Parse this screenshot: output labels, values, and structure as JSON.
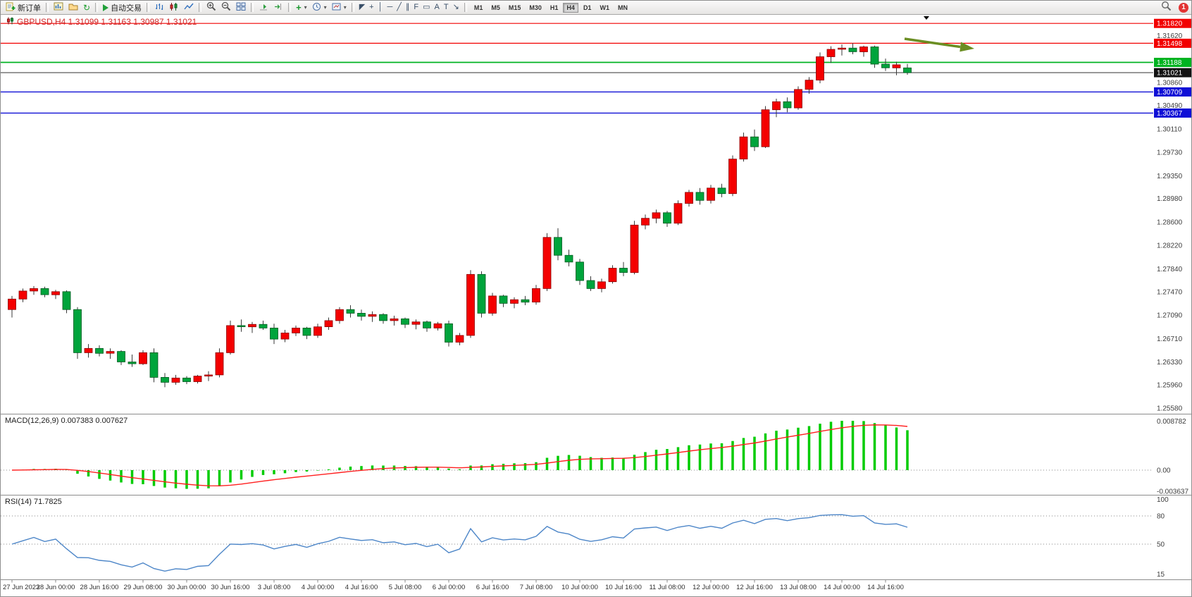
{
  "toolbar": {
    "new_order_label": "新订单",
    "auto_trading_label": "自动交易",
    "timeframes": [
      "M1",
      "M5",
      "M15",
      "M30",
      "H1",
      "H4",
      "D1",
      "W1",
      "MN"
    ],
    "active_timeframe": "H4",
    "draw_tools": [
      {
        "name": "cursor",
        "glyph": "◤"
      },
      {
        "name": "crosshair",
        "glyph": "+"
      },
      {
        "name": "vertical-line",
        "glyph": "│"
      },
      {
        "name": "horizontal-line",
        "glyph": "─"
      },
      {
        "name": "trendline",
        "glyph": "╱"
      },
      {
        "name": "equidistant-channel",
        "glyph": "∥"
      },
      {
        "name": "fibonacci",
        "glyph": "F"
      },
      {
        "name": "shapes",
        "glyph": "▭"
      },
      {
        "name": "text",
        "glyph": "A"
      },
      {
        "name": "text-label",
        "glyph": "T"
      },
      {
        "name": "arrows",
        "glyph": "↘"
      }
    ],
    "notification_badge": "1"
  },
  "chart": {
    "title": "GBPUSD,H4 1.31099 1.31163 1.30987 1.31021",
    "symbol": "GBPUSD",
    "period": "H4"
  },
  "indicators": {
    "macd": {
      "label": "MACD(12,26,9) 0.007383 0.007627",
      "axis": [
        "0.008782",
        "0.00",
        "-0.003637"
      ]
    },
    "rsi": {
      "label": "RSI(14) 71.7825",
      "axis": [
        "100",
        "80",
        "50",
        "15"
      ],
      "levels": [
        80,
        50
      ]
    }
  },
  "chart_data": {
    "type": "candlestick",
    "symbol": "GBPUSD",
    "timeframe": "H4",
    "current": {
      "open": 1.31099,
      "high": 1.31163,
      "low": 1.30987,
      "close": 1.31021
    },
    "y_range": [
      1.2549,
      1.3196
    ],
    "colors": {
      "up": "#f40000",
      "up_border": "#8c0000",
      "down": "#00a43c",
      "down_border": "#00591f",
      "wick": "#3a3a3a",
      "macd_hist": "#00cc00",
      "macd_signal": "#ff2020",
      "rsi_line": "#4d86c8",
      "arrow": "#6b8e23"
    },
    "hlines": [
      {
        "price": 1.3182,
        "label": "1.31820",
        "color": "#f20000",
        "width": 1.2
      },
      {
        "price": 1.31498,
        "label": "1.31498",
        "color": "#f20000",
        "width": 1.2
      },
      {
        "price": 1.31188,
        "label": "1.31188",
        "color": "#00b321",
        "width": 1.8
      },
      {
        "price": 1.31021,
        "label": "1.31021",
        "color": "#4a4a4a",
        "badge": "#111111",
        "width": 1.1
      },
      {
        "price": 1.30709,
        "label": "1.30709",
        "color": "#0f0fd6",
        "width": 1.4
      },
      {
        "price": 1.30367,
        "label": "1.30367",
        "color": "#0f0fd6",
        "width": 1.4
      }
    ],
    "price_axis_ticks": [
      "1.31620",
      "1.30860",
      "1.30490",
      "1.30110",
      "1.29730",
      "1.29350",
      "1.28980",
      "1.28600",
      "1.28220",
      "1.27840",
      "1.27470",
      "1.27090",
      "1.26710",
      "1.26330",
      "1.25960",
      "1.25580"
    ],
    "time_labels": [
      "27 Jun 2023",
      "28 Jun 00:00",
      "28 Jun 16:00",
      "29 Jun 08:00",
      "30 Jun 00:00",
      "30 Jun 16:00",
      "3 Jul 08:00",
      "4 Jul 00:00",
      "4 Jul 16:00",
      "5 Jul 08:00",
      "6 Jul 00:00",
      "6 Jul 16:00",
      "7 Jul 08:00",
      "10 Jul 00:00",
      "10 Jul 16:00",
      "11 Jul 08:00",
      "12 Jul 00:00",
      "12 Jul 16:00",
      "13 Jul 08:00",
      "14 Jul 00:00",
      "14 Jul 16:00"
    ],
    "candles": [
      [
        1.2718,
        1.274,
        1.2705,
        1.2735
      ],
      [
        1.2735,
        1.2752,
        1.273,
        1.2748
      ],
      [
        1.2748,
        1.2756,
        1.2742,
        1.2752
      ],
      [
        1.2752,
        1.2755,
        1.2738,
        1.2742
      ],
      [
        1.2742,
        1.275,
        1.2735,
        1.2747
      ],
      [
        1.2747,
        1.2749,
        1.2712,
        1.2718
      ],
      [
        1.2718,
        1.2722,
        1.2638,
        1.2648
      ],
      [
        1.2648,
        1.2662,
        1.264,
        1.2655
      ],
      [
        1.2655,
        1.266,
        1.2642,
        1.2647
      ],
      [
        1.2647,
        1.2655,
        1.2638,
        1.265
      ],
      [
        1.265,
        1.2652,
        1.2628,
        1.2633
      ],
      [
        1.2633,
        1.2645,
        1.2625,
        1.263
      ],
      [
        1.263,
        1.2652,
        1.2628,
        1.2648
      ],
      [
        1.2648,
        1.2655,
        1.26,
        1.2608
      ],
      [
        1.2608,
        1.2615,
        1.2592,
        1.26
      ],
      [
        1.26,
        1.2612,
        1.2596,
        1.2607
      ],
      [
        1.2607,
        1.261,
        1.2597,
        1.2601
      ],
      [
        1.2601,
        1.2612,
        1.2598,
        1.261
      ],
      [
        1.261,
        1.2618,
        1.2602,
        1.2612
      ],
      [
        1.2612,
        1.2655,
        1.2608,
        1.2648
      ],
      [
        1.2648,
        1.27,
        1.2645,
        1.2692
      ],
      [
        1.2692,
        1.2702,
        1.2682,
        1.269
      ],
      [
        1.269,
        1.2698,
        1.268,
        1.2694
      ],
      [
        1.2694,
        1.27,
        1.2685,
        1.2688
      ],
      [
        1.2688,
        1.2695,
        1.2662,
        1.267
      ],
      [
        1.267,
        1.2685,
        1.2665,
        1.268
      ],
      [
        1.268,
        1.2692,
        1.2675,
        1.2688
      ],
      [
        1.2688,
        1.269,
        1.267,
        1.2676
      ],
      [
        1.2676,
        1.2695,
        1.2672,
        1.269
      ],
      [
        1.269,
        1.2705,
        1.2685,
        1.27
      ],
      [
        1.27,
        1.2722,
        1.2695,
        1.2718
      ],
      [
        1.2718,
        1.2725,
        1.2705,
        1.2712
      ],
      [
        1.2712,
        1.2718,
        1.27,
        1.2707
      ],
      [
        1.2707,
        1.2715,
        1.2698,
        1.271
      ],
      [
        1.271,
        1.2712,
        1.2695,
        1.27
      ],
      [
        1.27,
        1.2708,
        1.2692,
        1.2703
      ],
      [
        1.2703,
        1.2705,
        1.2688,
        1.2694
      ],
      [
        1.2694,
        1.2702,
        1.2686,
        1.2698
      ],
      [
        1.2698,
        1.27,
        1.2682,
        1.2688
      ],
      [
        1.2688,
        1.2698,
        1.2684,
        1.2695
      ],
      [
        1.2695,
        1.27,
        1.2658,
        1.2665
      ],
      [
        1.2665,
        1.268,
        1.266,
        1.2676
      ],
      [
        1.2676,
        1.2782,
        1.2672,
        1.2775
      ],
      [
        1.2775,
        1.278,
        1.2705,
        1.2712
      ],
      [
        1.2712,
        1.2745,
        1.2708,
        1.274
      ],
      [
        1.274,
        1.2742,
        1.2722,
        1.2728
      ],
      [
        1.2728,
        1.2738,
        1.272,
        1.2734
      ],
      [
        1.2734,
        1.274,
        1.2725,
        1.273
      ],
      [
        1.273,
        1.2758,
        1.2726,
        1.2752
      ],
      [
        1.2752,
        1.2842,
        1.2748,
        1.2835
      ],
      [
        1.2835,
        1.285,
        1.2798,
        1.2806
      ],
      [
        1.2806,
        1.2815,
        1.2788,
        1.2795
      ],
      [
        1.2795,
        1.28,
        1.2758,
        1.2765
      ],
      [
        1.2765,
        1.2772,
        1.2748,
        1.2752
      ],
      [
        1.2752,
        1.2768,
        1.2746,
        1.2763
      ],
      [
        1.2763,
        1.279,
        1.276,
        1.2785
      ],
      [
        1.2785,
        1.2795,
        1.2772,
        1.2778
      ],
      [
        1.2778,
        1.2862,
        1.2775,
        1.2855
      ],
      [
        1.2855,
        1.2872,
        1.2848,
        1.2866
      ],
      [
        1.2866,
        1.288,
        1.2858,
        1.2875
      ],
      [
        1.2875,
        1.2878,
        1.2852,
        1.2858
      ],
      [
        1.2858,
        1.2895,
        1.2855,
        1.289
      ],
      [
        1.289,
        1.2912,
        1.2885,
        1.2908
      ],
      [
        1.2908,
        1.2915,
        1.2888,
        1.2895
      ],
      [
        1.2895,
        1.292,
        1.289,
        1.2915
      ],
      [
        1.2915,
        1.2922,
        1.29,
        1.2906
      ],
      [
        1.2906,
        1.2968,
        1.2902,
        1.2962
      ],
      [
        1.2962,
        1.3005,
        1.2958,
        1.2998
      ],
      [
        1.2998,
        1.301,
        1.2975,
        1.2982
      ],
      [
        1.2982,
        1.3048,
        1.298,
        1.3042
      ],
      [
        1.3042,
        1.306,
        1.303,
        1.3055
      ],
      [
        1.3055,
        1.3062,
        1.3038,
        1.3045
      ],
      [
        1.3045,
        1.308,
        1.3042,
        1.3075
      ],
      [
        1.3075,
        1.3095,
        1.3068,
        1.309
      ],
      [
        1.309,
        1.3135,
        1.3085,
        1.3128
      ],
      [
        1.3128,
        1.3145,
        1.3118,
        1.314
      ],
      [
        1.314,
        1.3148,
        1.313,
        1.3142
      ],
      [
        1.3142,
        1.315,
        1.3132,
        1.3136
      ],
      [
        1.3136,
        1.3146,
        1.3128,
        1.3144
      ],
      [
        1.3144,
        1.3146,
        1.311,
        1.3116
      ],
      [
        1.3116,
        1.3125,
        1.3105,
        1.311
      ],
      [
        1.311,
        1.312,
        1.3098,
        1.3115
      ],
      [
        1.31099,
        1.31163,
        1.30987,
        1.31021
      ]
    ]
  }
}
